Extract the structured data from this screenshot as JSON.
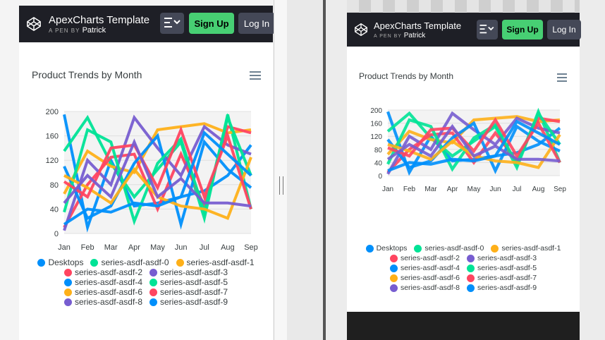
{
  "header": {
    "title": "ApexCharts Template",
    "byline_prefix": "A PEN BY",
    "author": "Patrick",
    "signup_label": "Sign Up",
    "login_label": "Log In"
  },
  "colors": [
    "#008ffb",
    "#00e396",
    "#feb019",
    "#ff4560",
    "#775dd0",
    "#008ffb",
    "#00e396",
    "#feb019",
    "#ff4560",
    "#775dd0",
    "#008ffb"
  ],
  "chart_data": {
    "type": "line",
    "title": "Product Trends by Month",
    "categories": [
      "Jan",
      "Feb",
      "Mar",
      "Apr",
      "May",
      "Jun",
      "Jul",
      "Aug",
      "Sep"
    ],
    "ylim": [
      0,
      200
    ],
    "yticks": [
      0,
      40,
      80,
      120,
      160,
      200
    ],
    "grid": true,
    "legend_position": "bottom",
    "series": [
      {
        "name": "Desktops",
        "values": [
          195,
          10,
          120,
          45,
          50,
          60,
          70,
          95,
          145
        ]
      },
      {
        "name": "series-asdf-asdf-0",
        "values": [
          135,
          190,
          115,
          60,
          105,
          150,
          25,
          195,
          40
        ]
      },
      {
        "name": "series-asdf-asdf-1",
        "values": [
          65,
          135,
          110,
          100,
          170,
          175,
          180,
          165,
          170
        ]
      },
      {
        "name": "series-asdf-asdf-2",
        "values": [
          10,
          80,
          125,
          130,
          40,
          130,
          45,
          175,
          165
        ]
      },
      {
        "name": "series-asdf-asdf-3",
        "values": [
          5,
          120,
          80,
          190,
          140,
          95,
          175,
          145,
          130
        ]
      },
      {
        "name": "series-asdf-asdf-4",
        "values": [
          110,
          25,
          45,
          115,
          160,
          15,
          150,
          105,
          75
        ]
      },
      {
        "name": "series-asdf-asdf-5",
        "values": [
          35,
          170,
          150,
          20,
          115,
          155,
          35,
          190,
          95
        ]
      },
      {
        "name": "series-asdf-asdf-6",
        "values": [
          95,
          75,
          50,
          105,
          60,
          45,
          40,
          25,
          125
        ]
      },
      {
        "name": "series-asdf-asdf-7",
        "values": [
          85,
          60,
          140,
          145,
          75,
          170,
          60,
          160,
          40
        ]
      },
      {
        "name": "series-asdf-asdf-8",
        "values": [
          50,
          95,
          60,
          150,
          60,
          90,
          50,
          50,
          45
        ]
      },
      {
        "name": "series-asdf-asdf-9",
        "values": [
          15,
          40,
          35,
          50,
          45,
          60,
          165,
          130,
          95
        ]
      }
    ]
  }
}
